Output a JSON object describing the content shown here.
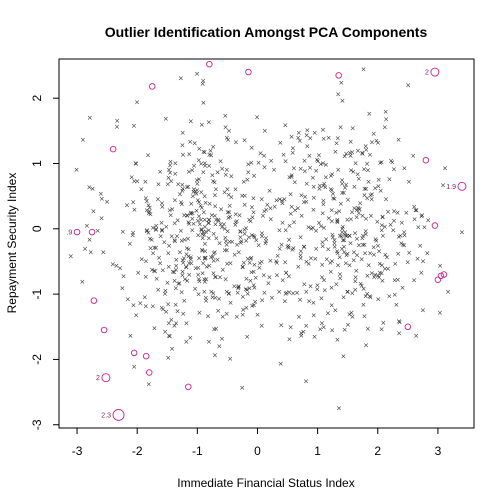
{
  "chart_data": {
    "type": "scatter",
    "title": "Outlier Identification Amongst PCA Components",
    "xlabel": "Immediate Financial Status Index",
    "ylabel": "Repayment Security Index",
    "xlim": [
      -3.3,
      3.6
    ],
    "ylim": [
      -3.05,
      2.6
    ],
    "xticks": [
      -3,
      -2,
      -1,
      0,
      1,
      2,
      3
    ],
    "yticks": [
      -3,
      -2,
      -1,
      0,
      1,
      2
    ],
    "grid": false,
    "point_color": "#333333",
    "outlier_color": "#cc2288",
    "outlier_label_color": "#8b2252",
    "point_count": 900,
    "labeled_outliers": [
      {
        "x": -2.31,
        "y": -2.85,
        "label": "2.3"
      },
      {
        "x": -2.52,
        "y": -2.28,
        "label": "2"
      },
      {
        "x": 2.95,
        "y": 2.4,
        "label": "2"
      },
      {
        "x": 3.4,
        "y": 0.65,
        "label": "1.9"
      },
      {
        "x": -3.0,
        "y": -0.05,
        "label": ".9"
      }
    ],
    "circled_points": [
      {
        "x": -2.75,
        "y": -0.05
      },
      {
        "x": -2.72,
        "y": -1.1
      },
      {
        "x": -2.55,
        "y": -1.55
      },
      {
        "x": -2.4,
        "y": 1.22
      },
      {
        "x": -1.75,
        "y": 2.18
      },
      {
        "x": -1.85,
        "y": -1.95
      },
      {
        "x": -1.8,
        "y": -2.2
      },
      {
        "x": -1.15,
        "y": -2.42
      },
      {
        "x": -0.8,
        "y": 2.52
      },
      {
        "x": -0.15,
        "y": 2.4
      },
      {
        "x": 1.35,
        "y": 2.35
      },
      {
        "x": 2.95,
        "y": 0.05
      },
      {
        "x": 3.0,
        "y": -0.78
      },
      {
        "x": 3.05,
        "y": -0.72
      },
      {
        "x": 3.1,
        "y": -0.7
      },
      {
        "x": 2.5,
        "y": -1.5
      },
      {
        "x": -2.05,
        "y": -1.9
      },
      {
        "x": 2.8,
        "y": 1.05
      }
    ]
  }
}
